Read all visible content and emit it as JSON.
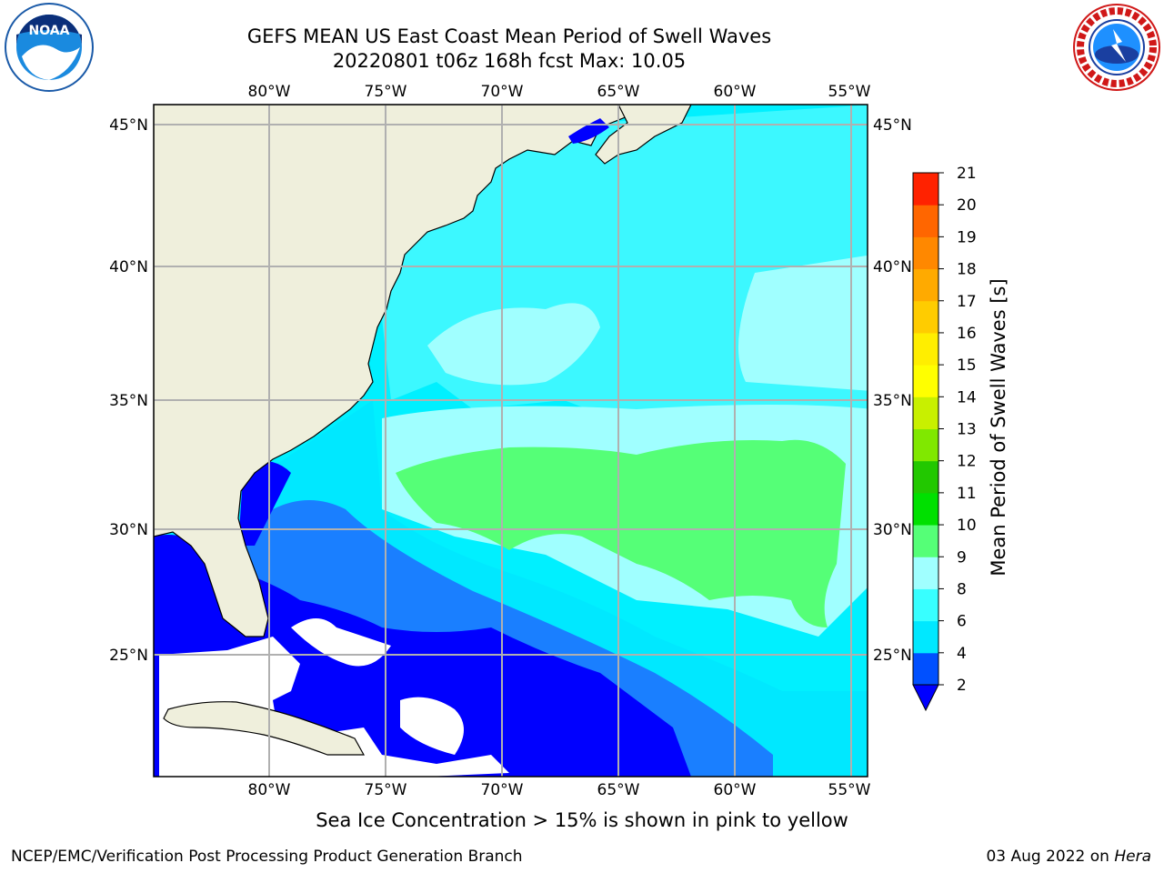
{
  "title_line1": "GEFS MEAN US East Coast Mean Period of Swell Waves",
  "title_line2": "20220801 t06z 168h fcst   Max: 10.05",
  "lon_labels": [
    "80°W",
    "75°W",
    "70°W",
    "65°W",
    "60°W",
    "55°W"
  ],
  "lat_labels": [
    "45°N",
    "40°N",
    "35°N",
    "30°N",
    "25°N"
  ],
  "colorbar": {
    "label": "Mean Period of Swell Waves [s]",
    "ticks": [
      "2",
      "4",
      "6",
      "8",
      "9",
      "10",
      "11",
      "12",
      "13",
      "14",
      "15",
      "16",
      "17",
      "18",
      "19",
      "20",
      "21"
    ],
    "colors": [
      "#0050ff",
      "#00e8ff",
      "#38ffff",
      "#a0ffff",
      "#55ff77",
      "#00e000",
      "#22c800",
      "#80e800",
      "#c8f000",
      "#ffff00",
      "#ffee00",
      "#ffcc00",
      "#ffaa00",
      "#ff8800",
      "#ff6600",
      "#ff2200"
    ],
    "underflow_color": "#0000ff"
  },
  "note": "Sea Ice Concentration > 15% is shown in pink to yellow",
  "footer_left": "NCEP/EMC/Verification Post Processing Product Generation Branch",
  "footer_right_date": "03 Aug 2022 on ",
  "footer_right_host": "Hera",
  "colors": {
    "land": "#efefdc",
    "ocean_deep": "#0000ff",
    "grid": "#b0b0b0"
  }
}
